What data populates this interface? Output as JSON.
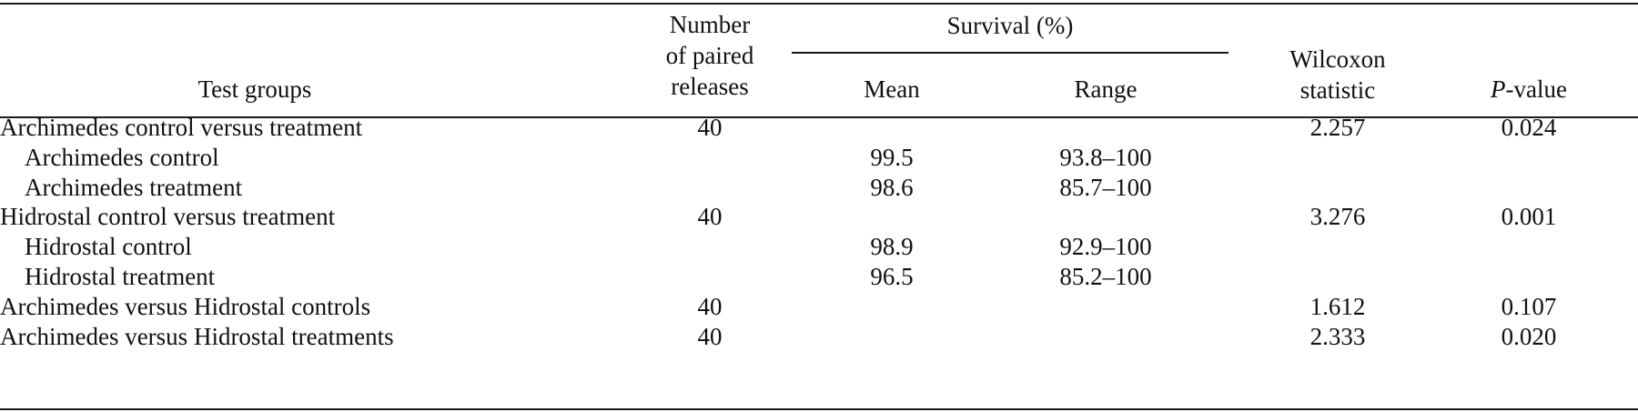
{
  "header": {
    "test_groups": "Test groups",
    "number_line1": "Number",
    "number_line2": "of paired",
    "number_line3": "releases",
    "survival": "Survival (%)",
    "mean": "Mean",
    "range": "Range",
    "wilcoxon_line1": "Wilcoxon",
    "wilcoxon_line2": "statistic",
    "pvalue_italic": "P",
    "pvalue_rest": "-value"
  },
  "rows": [
    {
      "group": "Archimedes control versus treatment",
      "indent": false,
      "n": "40",
      "mean": "",
      "range": "",
      "wilcoxon": "2.257",
      "p": "0.024"
    },
    {
      "group": "Archimedes control",
      "indent": true,
      "n": "",
      "mean": "99.5",
      "range": "93.8–100",
      "wilcoxon": "",
      "p": ""
    },
    {
      "group": "Archimedes treatment",
      "indent": true,
      "n": "",
      "mean": "98.6",
      "range": "85.7–100",
      "wilcoxon": "",
      "p": ""
    },
    {
      "group": "Hidrostal control versus treatment",
      "indent": false,
      "n": "40",
      "mean": "",
      "range": "",
      "wilcoxon": "3.276",
      "p": "0.001"
    },
    {
      "group": "Hidrostal control",
      "indent": true,
      "n": "",
      "mean": "98.9",
      "range": "92.9–100",
      "wilcoxon": "",
      "p": ""
    },
    {
      "group": "Hidrostal treatment",
      "indent": true,
      "n": "",
      "mean": "96.5",
      "range": "85.2–100",
      "wilcoxon": "",
      "p": ""
    },
    {
      "group": "Archimedes versus Hidrostal controls",
      "indent": false,
      "n": "40",
      "mean": "",
      "range": "",
      "wilcoxon": "1.612",
      "p": "0.107"
    },
    {
      "group": "Archimedes versus Hidrostal treatments",
      "indent": false,
      "n": "40",
      "mean": "",
      "range": "",
      "wilcoxon": "2.333",
      "p": "0.020"
    }
  ]
}
